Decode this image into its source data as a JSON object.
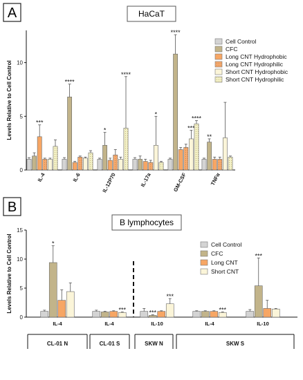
{
  "figure": {
    "panel_a_letter": "A",
    "panel_b_letter": "B"
  },
  "chart_data": [
    {
      "type": "bar",
      "title": "HaCaT",
      "ylabel": "Levels Relative to Cell Control",
      "ylim": [
        0,
        13
      ],
      "yticks": [
        0,
        5,
        10
      ],
      "categories": [
        "IL-4",
        "IL-6",
        "IL-12P70",
        "IL-17a",
        "GM-CSF",
        "TNFα"
      ],
      "legend_position": "top-right",
      "series": [
        {
          "name": "Cell Control",
          "color": "#d4d4d4",
          "pattern": "solid",
          "values": [
            1,
            1,
            1,
            1,
            1,
            1
          ],
          "errors": [
            0.15,
            0.15,
            0.1,
            0.15,
            0.1,
            0.1
          ],
          "sig": [
            "",
            "",
            "",
            "",
            "",
            ""
          ]
        },
        {
          "name": "CFC",
          "color": "#c2b48a",
          "pattern": "solid",
          "values": [
            1.3,
            6.8,
            2.3,
            1.0,
            10.8,
            2.6
          ],
          "errors": [
            0.3,
            1.2,
            1.2,
            0.3,
            1.8,
            0.3
          ],
          "sig": [
            "",
            "****",
            "*",
            "",
            "****",
            "**"
          ]
        },
        {
          "name": "Long CNT Hydrophobic",
          "color": "#f7a664",
          "pattern": "solid",
          "values": [
            3.1,
            0.7,
            0.9,
            0.8,
            1.9,
            1.0
          ],
          "errors": [
            1.1,
            0.1,
            0.2,
            0.2,
            0.2,
            0.2
          ],
          "sig": [
            "***",
            "",
            "",
            "",
            "",
            ""
          ]
        },
        {
          "name": "Long CNT Hydrophilic",
          "color": "#f6a86c",
          "pattern": "dots",
          "values": [
            1.0,
            1.2,
            1.4,
            0.7,
            2.1,
            1.0
          ],
          "errors": [
            0.1,
            0.1,
            0.5,
            0.2,
            0.3,
            0.2
          ],
          "sig": [
            "",
            "",
            "",
            "",
            "",
            ""
          ]
        },
        {
          "name": "Short CNT Hydrophobic",
          "color": "#fbf5d9",
          "pattern": "solid",
          "values": [
            1.0,
            1.1,
            1.0,
            2.3,
            2.9,
            3.0
          ],
          "errors": [
            0.1,
            0.1,
            0.2,
            2.7,
            0.8,
            3.3
          ],
          "sig": [
            "",
            "",
            "",
            "*",
            "***",
            ""
          ]
        },
        {
          "name": "Short CNT Hydrophilic",
          "color": "#f3f1c6",
          "pattern": "dots",
          "values": [
            2.2,
            1.6,
            3.9,
            0.7,
            4.3,
            1.2
          ],
          "errors": [
            0.6,
            0.2,
            4.8,
            0.1,
            0.3,
            0.1
          ],
          "sig": [
            "",
            "",
            "****",
            "",
            "****",
            ""
          ]
        }
      ]
    },
    {
      "type": "bar",
      "title": "B lymphocytes",
      "ylabel": "Levels Relative to Cell Control",
      "ylim": [
        0,
        15
      ],
      "yticks": [
        0,
        5,
        10,
        15
      ],
      "categories": [
        "IL-4",
        "IL-4",
        "IL-10",
        "IL-4",
        "IL-10"
      ],
      "groups": [
        {
          "label": "CL-01 N",
          "categories": [
            0
          ]
        },
        {
          "label": "CL-01 S",
          "categories": [
            1
          ]
        },
        {
          "label": "SKW N",
          "categories": [
            2
          ]
        },
        {
          "label": "SKW S",
          "categories": [
            3,
            4
          ]
        }
      ],
      "divider_after_category": 1,
      "legend_position": "top-right",
      "series": [
        {
          "name": "Cell Control",
          "color": "#d4d4d4",
          "pattern": "solid",
          "values": [
            1.0,
            1.0,
            1.0,
            1.0,
            1.0
          ],
          "errors": [
            0.2,
            0.2,
            0.5,
            0.1,
            0.3
          ],
          "sig": [
            "",
            "",
            "",
            "",
            ""
          ]
        },
        {
          "name": "CFC",
          "color": "#c2b48a",
          "pattern": "solid",
          "values": [
            9.4,
            0.9,
            0.3,
            1.0,
            5.4
          ],
          "errors": [
            2.9,
            0.1,
            0.1,
            0.1,
            4.8
          ],
          "sig": [
            "*",
            "",
            "***",
            "",
            "***"
          ]
        },
        {
          "name": "Long CNT",
          "color": "#f7a664",
          "pattern": "solid",
          "values": [
            2.9,
            1.0,
            1.0,
            1.0,
            1.5
          ],
          "errors": [
            1.8,
            0.1,
            0.1,
            0.1,
            1.4
          ],
          "sig": [
            "",
            "",
            "",
            "",
            ""
          ]
        },
        {
          "name": "Short CNT",
          "color": "#fbf5d9",
          "pattern": "solid",
          "values": [
            4.4,
            0.8,
            2.3,
            0.8,
            1.4
          ],
          "errors": [
            1.5,
            0.1,
            0.9,
            0.1,
            0.1
          ],
          "sig": [
            "",
            "***",
            "***",
            "***",
            ""
          ]
        }
      ]
    }
  ]
}
